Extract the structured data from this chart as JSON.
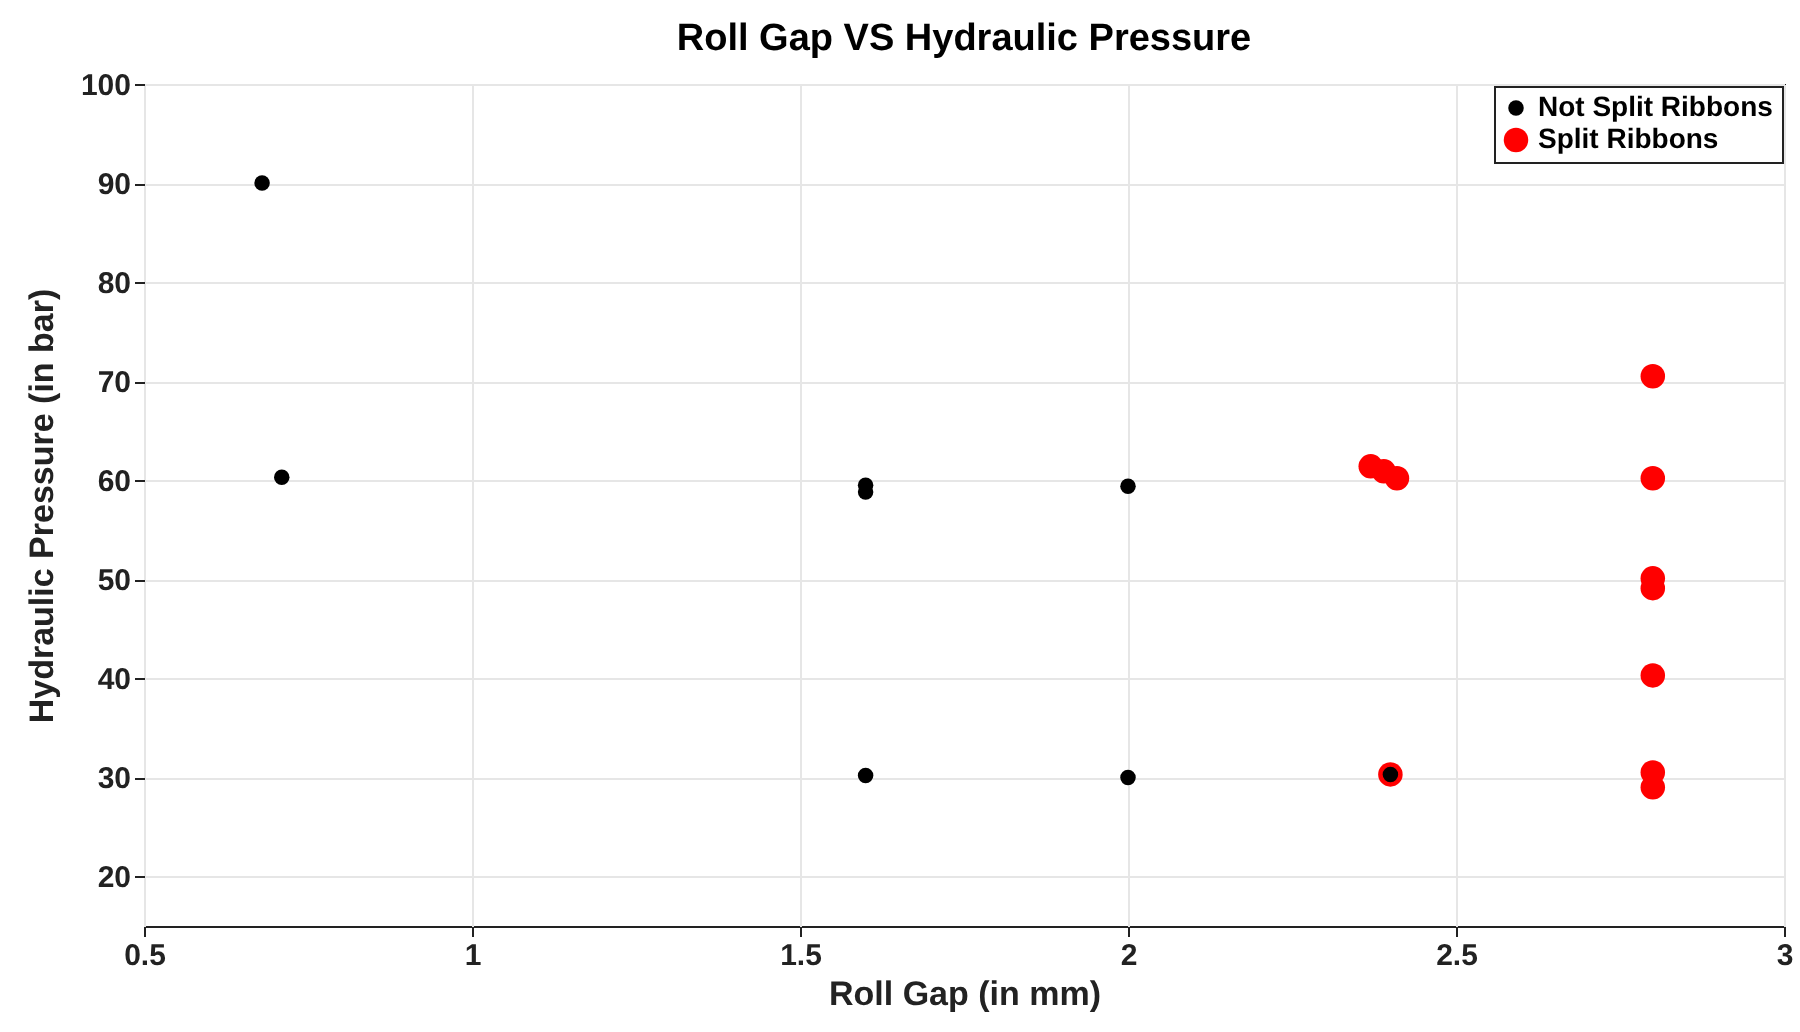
{
  "chart_data": {
    "type": "scatter",
    "title": "Roll Gap VS Hydraulic Pressure",
    "xlabel": "Roll Gap (in mm)",
    "ylabel": "Hydraulic Pressure (in bar)",
    "xlim": [
      0.5,
      3
    ],
    "xticks": [
      0.5,
      1,
      1.5,
      2,
      2.5,
      3
    ],
    "ylim": [
      15,
      100
    ],
    "yticks": [
      20,
      30,
      40,
      50,
      60,
      70,
      80,
      90,
      100
    ],
    "grid": true,
    "legend": "top right",
    "marker": "circle",
    "series": [
      {
        "name": "Not Split Ribbons",
        "color": "#000000",
        "x": [
          0.68,
          0.71,
          1.6,
          1.6,
          1.6,
          2.0,
          2.0,
          2.4
        ],
        "values": [
          90,
          60.3,
          59.5,
          58.8,
          30.2,
          59.4,
          30,
          30.3
        ]
      },
      {
        "name": "Split Ribbons",
        "color": "#ff0000",
        "x": [
          2.37,
          2.39,
          2.41,
          2.4,
          2.8,
          2.8,
          2.8,
          2.8,
          2.8,
          2.8,
          2.8
        ],
        "values": [
          61.4,
          60.9,
          60.2,
          30.3,
          70.5,
          60.2,
          50.1,
          49.1,
          40.3,
          30.5,
          29.0
        ]
      }
    ]
  }
}
